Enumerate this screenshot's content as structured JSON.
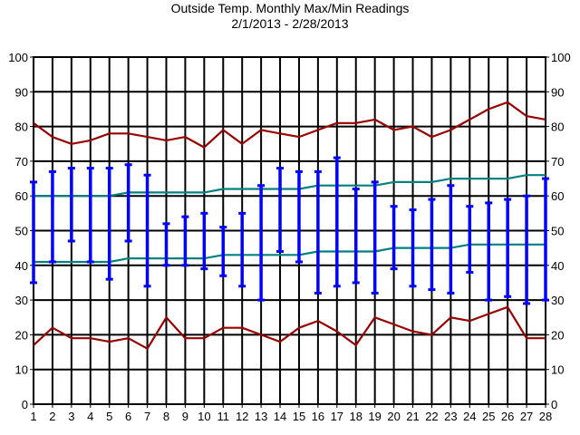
{
  "chart_data": {
    "type": "line",
    "title": "Outside Temp. Monthly Max/Min Readings",
    "subtitle": "2/1/2013 - 2/28/2013",
    "x": [
      1,
      2,
      3,
      4,
      5,
      6,
      7,
      8,
      9,
      10,
      11,
      12,
      13,
      14,
      15,
      16,
      17,
      18,
      19,
      20,
      21,
      22,
      23,
      24,
      25,
      26,
      27,
      28
    ],
    "xlim": [
      1,
      28
    ],
    "ylim": [
      0,
      100
    ],
    "y_ticks": [
      0,
      10,
      20,
      30,
      40,
      50,
      60,
      70,
      80,
      90,
      100
    ],
    "grid": true,
    "right_axis_mirrored": true,
    "colors": {
      "record_lines": "#990000",
      "normal_lines": "#008080",
      "daily_bars": "#0000ff",
      "grid": "#000000"
    },
    "series": [
      {
        "kind": "line",
        "color_key": "record_lines",
        "values": [
          81,
          77,
          75,
          76,
          78,
          78,
          77,
          76,
          77,
          74,
          79,
          75,
          79,
          78,
          77,
          79,
          81,
          81,
          82,
          79,
          80,
          77,
          79,
          82,
          85,
          87,
          83,
          82
        ]
      },
      {
        "kind": "line",
        "color_key": "normal_lines",
        "values": [
          60,
          60,
          60,
          60,
          60,
          61,
          61,
          61,
          61,
          61,
          62,
          62,
          62,
          62,
          62,
          63,
          63,
          63,
          63,
          64,
          64,
          64,
          65,
          65,
          65,
          65,
          66,
          66
        ]
      },
      {
        "kind": "line",
        "color_key": "normal_lines",
        "values": [
          41,
          41,
          41,
          41,
          41,
          42,
          42,
          42,
          42,
          42,
          43,
          43,
          43,
          43,
          43,
          44,
          44,
          44,
          44,
          45,
          45,
          45,
          45,
          46,
          46,
          46,
          46,
          46
        ]
      },
      {
        "kind": "line",
        "color_key": "record_lines",
        "values": [
          17,
          22,
          19,
          19,
          18,
          19,
          16,
          25,
          19,
          19,
          22,
          22,
          20,
          18,
          22,
          24,
          21,
          17,
          25,
          23,
          21,
          20,
          25,
          24,
          26,
          28,
          19,
          19
        ]
      },
      {
        "kind": "range_bars",
        "color_key": "daily_bars",
        "high": [
          64,
          67,
          68,
          68,
          68,
          69,
          66,
          52,
          54,
          55,
          51,
          55,
          63,
          68,
          67,
          67,
          71,
          62,
          64,
          57,
          56,
          59,
          63,
          57,
          58,
          59,
          60,
          65
        ],
        "low": [
          35,
          41,
          47,
          41,
          36,
          47,
          34,
          40,
          40,
          39,
          37,
          34,
          30,
          44,
          41,
          32,
          34,
          35,
          32,
          39,
          34,
          33,
          32,
          38,
          30,
          31,
          29,
          30
        ]
      }
    ]
  }
}
